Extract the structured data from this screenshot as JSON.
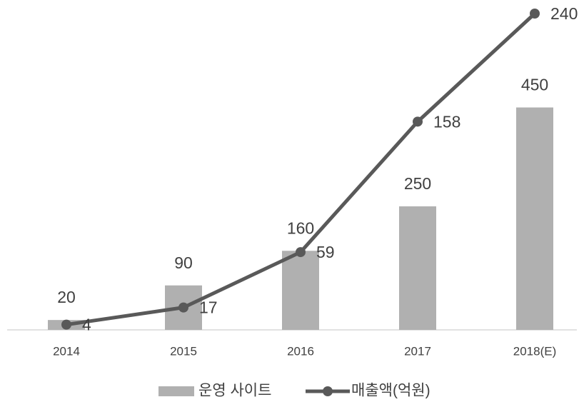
{
  "chart_data": {
    "type": "bar_line",
    "categories": [
      "2014",
      "2015",
      "2016",
      "2017",
      "2018(E)"
    ],
    "series": [
      {
        "name": "운영 사이트",
        "type": "bar",
        "color": "#b0b0b0",
        "values": [
          20,
          90,
          160,
          250,
          450
        ]
      },
      {
        "name": "매출액(억원)",
        "type": "line",
        "axis": "y2",
        "color": "#595959",
        "values": [
          4,
          17,
          59,
          158,
          240
        ]
      }
    ],
    "ylim": [
      0,
      640
    ],
    "y2lim": [
      0,
      240
    ],
    "grid": false,
    "legend": "bottom"
  }
}
